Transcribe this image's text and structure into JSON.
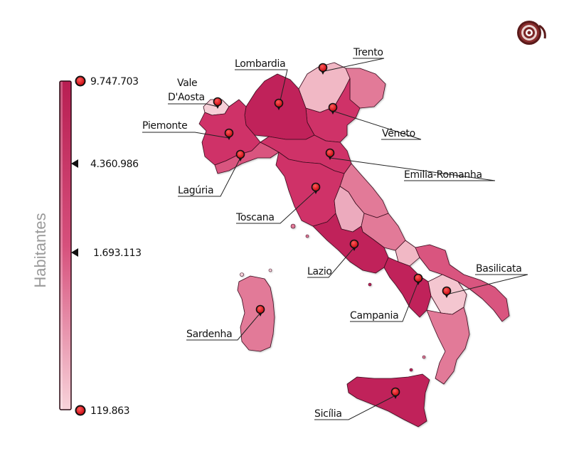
{
  "legend": {
    "title": "Habitantes",
    "ticks": [
      "9.747.703",
      "4.360.986",
      "1.693.113",
      "119.863"
    ],
    "color_top": "#c0245a",
    "color_bottom": "#f4c4cc"
  },
  "colors": {
    "darkest": "#c0245a",
    "dark": "#cf3368",
    "mid": "#d9557f",
    "light": "#e27a98",
    "lighter": "#ecaabd",
    "lightest": "#f6d0d8",
    "marker": "#e8101a"
  },
  "regions": [
    {
      "name": "Lombardia",
      "population": "9.747.703"
    },
    {
      "name": "Trento",
      "population": ""
    },
    {
      "name": "Vale D'Aosta",
      "population": "119.863"
    },
    {
      "name": "Piemonte",
      "population": "4.360.986"
    },
    {
      "name": "Vêneto",
      "population": ""
    },
    {
      "name": "Emilia-Romanha",
      "population": ""
    },
    {
      "name": "Lagúria",
      "population": "1.693.113"
    },
    {
      "name": "Toscana",
      "population": ""
    },
    {
      "name": "Lazio",
      "population": ""
    },
    {
      "name": "Basilicata",
      "population": ""
    },
    {
      "name": "Campania",
      "population": ""
    },
    {
      "name": "Sardenha",
      "population": ""
    },
    {
      "name": "Sicília",
      "population": ""
    }
  ],
  "labels": {
    "lombardia": "Lombardia",
    "trento": "Trento",
    "vale_1": "Vale",
    "vale_2": "D'Aosta",
    "piemonte": "Piemonte",
    "veneto": "Vêneto",
    "emilia": "Emilia-Romanha",
    "laguria": "Lagúria",
    "toscana": "Toscana",
    "lazio": "Lazio",
    "basilicata": "Basilicata",
    "campania": "Campania",
    "sardenha": "Sardenha",
    "sicilia": "Sicília"
  },
  "icons": {
    "top_right": "target-logo-icon",
    "marker": "map-pin-icon"
  }
}
